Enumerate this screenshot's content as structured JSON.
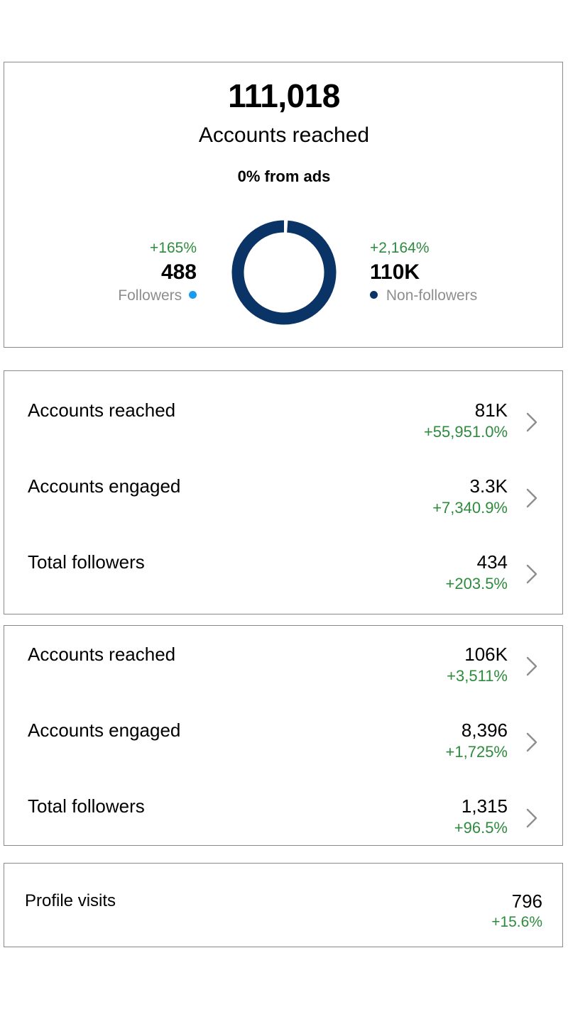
{
  "summary": {
    "total": "111,018",
    "label": "Accounts reached",
    "ads": "0% from ads",
    "followers": {
      "change": "+165%",
      "value": "488",
      "label": "Followers",
      "color": "#1a9bef"
    },
    "non_followers": {
      "change": "+2,164%",
      "value": "110K",
      "label": "Non-followers",
      "color": "#0a3466"
    },
    "donut": {
      "followers_fraction": 0.0044,
      "non_followers_fraction": 0.9956
    }
  },
  "metrics_group_1": [
    {
      "label": "Accounts reached",
      "value": "81K",
      "change": "+55,951.0%"
    },
    {
      "label": "Accounts engaged",
      "value": "3.3K",
      "change": "+7,340.9%"
    },
    {
      "label": "Total followers",
      "value": "434",
      "change": "+203.5%"
    }
  ],
  "metrics_group_2": [
    {
      "label": "Accounts reached",
      "value": "106K",
      "change": "+3,511%"
    },
    {
      "label": "Accounts engaged",
      "value": "8,396",
      "change": "+1,725%"
    },
    {
      "label": "Total followers",
      "value": "1,315",
      "change": "+96.5%"
    }
  ],
  "profile_visits": {
    "label": "Profile visits",
    "value": "796",
    "change": "+15.6%"
  },
  "colors": {
    "positive": "#2e8b3e",
    "muted": "#8e8e8e",
    "border": "#8a8a8a"
  }
}
